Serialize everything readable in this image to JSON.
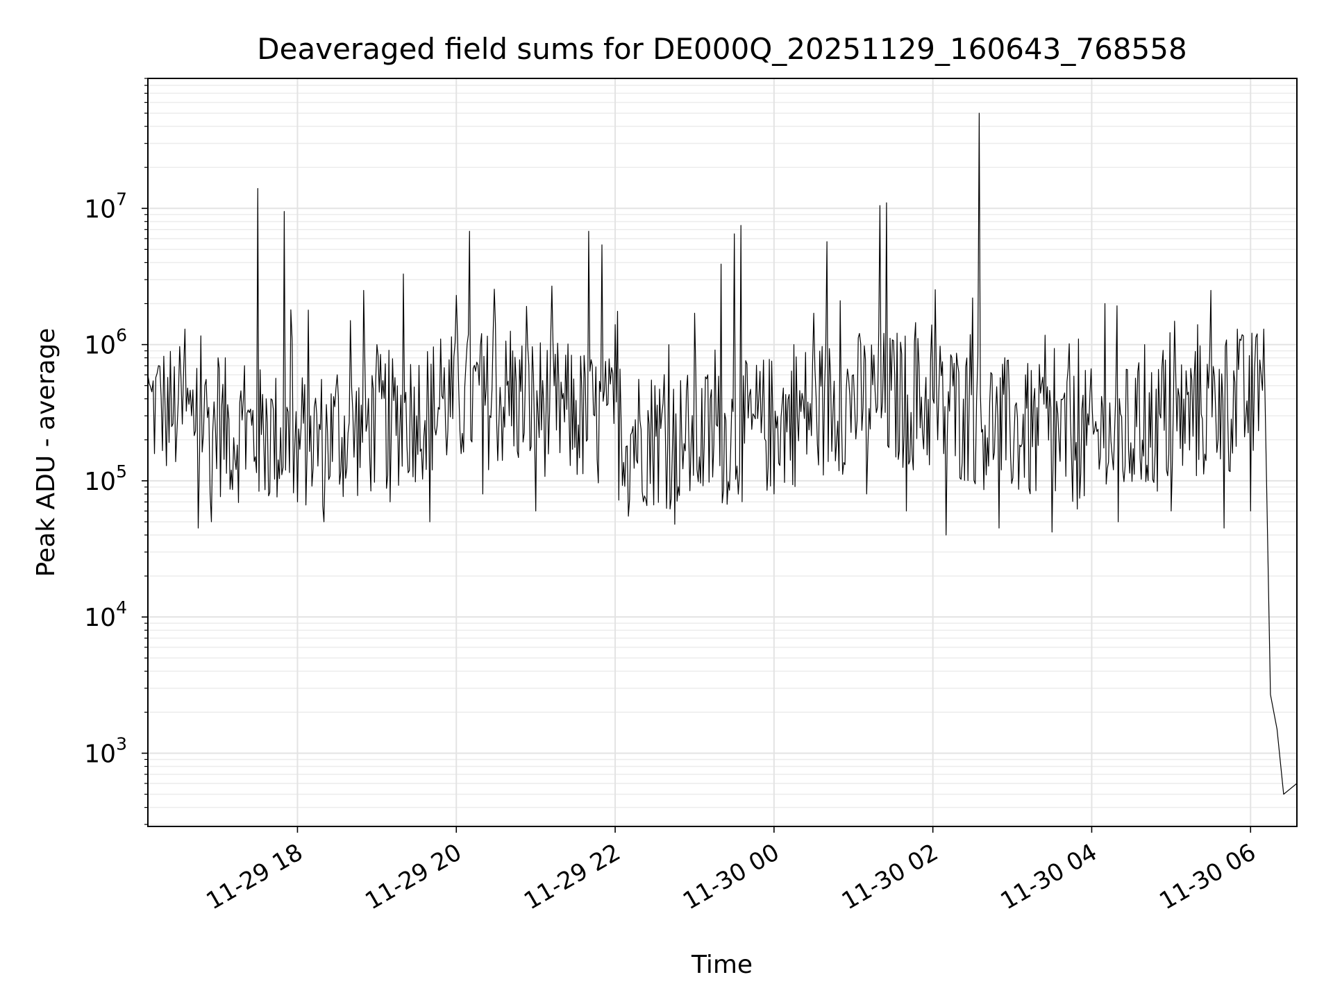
{
  "chart_data": {
    "type": "line",
    "title": "Deaveraged field sums for DE000Q_20251129_160643_768558",
    "xlabel": "Time",
    "ylabel": "Peak ADU - average",
    "yscale": "log",
    "grid": true,
    "line_color": "#000000",
    "xlim": [
      "2025-11-29 16:07",
      "2025-11-30 06:35"
    ],
    "ylim": [
      290,
      90000000
    ],
    "x_ticks": [
      {
        "value": "2025-11-29 18:00",
        "label": "11-29 18"
      },
      {
        "value": "2025-11-29 20:00",
        "label": "11-29 20"
      },
      {
        "value": "2025-11-29 22:00",
        "label": "11-29 22"
      },
      {
        "value": "2025-11-30 00:00",
        "label": "11-30 00"
      },
      {
        "value": "2025-11-30 02:00",
        "label": "11-30 02"
      },
      {
        "value": "2025-11-30 04:00",
        "label": "11-30 04"
      },
      {
        "value": "2025-11-30 06:00",
        "label": "11-30 06"
      }
    ],
    "y_ticks": [
      {
        "value": 1000,
        "base": "10",
        "exp": "3"
      },
      {
        "value": 10000,
        "base": "10",
        "exp": "4"
      },
      {
        "value": 100000,
        "base": "10",
        "exp": "5"
      },
      {
        "value": 1000000,
        "base": "10",
        "exp": "6"
      },
      {
        "value": 10000000,
        "base": "10",
        "exp": "7"
      }
    ],
    "series": [
      {
        "values": [
          [
            "2025-11-29 16:07",
            600000
          ],
          [
            "2025-11-29 16:10",
            450000
          ],
          [
            "2025-11-29 16:15",
            700000
          ],
          [
            "2025-11-29 16:20",
            350000
          ],
          [
            "2025-11-29 16:25",
            250000
          ],
          [
            "2025-11-29 16:30",
            400000
          ],
          [
            "2025-11-29 16:35",
            1300000
          ],
          [
            "2025-11-29 16:40",
            300000
          ],
          [
            "2025-11-29 16:45",
            45000
          ],
          [
            "2025-11-29 16:50",
            500000
          ],
          [
            "2025-11-29 16:55",
            50000
          ],
          [
            "2025-11-29 17:00",
            800000
          ],
          [
            "2025-11-29 17:10",
            120000
          ],
          [
            "2025-11-29 17:20",
            700000
          ],
          [
            "2025-11-29 17:30",
            14000000
          ],
          [
            "2025-11-29 17:40",
            400000
          ],
          [
            "2025-11-29 17:50",
            9500000
          ],
          [
            "2025-11-29 17:55",
            1800000
          ],
          [
            "2025-11-29 18:00",
            70000
          ],
          [
            "2025-11-29 18:10",
            300000
          ],
          [
            "2025-11-29 18:20",
            50000
          ],
          [
            "2025-11-29 18:30",
            600000
          ],
          [
            "2025-11-29 18:40",
            1500000
          ],
          [
            "2025-11-29 18:50",
            2500000
          ],
          [
            "2025-11-29 19:00",
            1000000
          ],
          [
            "2025-11-29 19:10",
            70000
          ],
          [
            "2025-11-29 19:20",
            3300000
          ],
          [
            "2025-11-29 19:30",
            300000
          ],
          [
            "2025-11-29 19:40",
            50000
          ],
          [
            "2025-11-29 19:50",
            400000
          ],
          [
            "2025-11-29 20:00",
            2300000
          ],
          [
            "2025-11-29 20:10",
            6800000
          ],
          [
            "2025-11-29 20:20",
            80000
          ],
          [
            "2025-11-29 20:40",
            300000
          ],
          [
            "2025-11-29 21:00",
            60000
          ],
          [
            "2025-11-29 21:20",
            400000
          ],
          [
            "2025-11-29 21:40",
            6800000
          ],
          [
            "2025-11-29 21:50",
            5400000
          ],
          [
            "2025-11-29 22:00",
            1400000
          ],
          [
            "2025-11-29 22:10",
            55000
          ],
          [
            "2025-11-29 22:30",
            500000
          ],
          [
            "2025-11-29 22:45",
            48000
          ],
          [
            "2025-11-29 23:00",
            1700000
          ],
          [
            "2025-11-29 23:10",
            600000
          ],
          [
            "2025-11-29 23:20",
            3900000
          ],
          [
            "2025-11-29 23:30",
            6500000
          ],
          [
            "2025-11-29 23:35",
            7500000
          ],
          [
            "2025-11-29 23:45",
            300000
          ],
          [
            "2025-11-30 00:00",
            80000
          ],
          [
            "2025-11-30 00:15",
            1000000
          ],
          [
            "2025-11-30 00:30",
            1700000
          ],
          [
            "2025-11-30 00:40",
            5700000
          ],
          [
            "2025-11-30 00:50",
            2100000
          ],
          [
            "2025-11-30 01:00",
            600000
          ],
          [
            "2025-11-30 01:10",
            80000
          ],
          [
            "2025-11-30 01:20",
            10500000
          ],
          [
            "2025-11-30 01:25",
            11000000
          ],
          [
            "2025-11-30 01:40",
            60000
          ],
          [
            "2025-11-30 02:00",
            400000
          ],
          [
            "2025-11-30 02:10",
            40000
          ],
          [
            "2025-11-30 02:30",
            2200000
          ],
          [
            "2025-11-30 02:35",
            50000000
          ],
          [
            "2025-11-30 02:50",
            45000
          ],
          [
            "2025-11-30 03:10",
            600000
          ],
          [
            "2025-11-30 03:30",
            42000
          ],
          [
            "2025-11-30 03:50",
            1100000
          ],
          [
            "2025-11-30 04:10",
            2000000
          ],
          [
            "2025-11-30 04:20",
            50000
          ],
          [
            "2025-11-30 04:40",
            1000000
          ],
          [
            "2025-11-30 05:00",
            60000
          ],
          [
            "2025-11-30 05:20",
            1400000
          ],
          [
            "2025-11-30 05:30",
            2500000
          ],
          [
            "2025-11-30 05:40",
            45000
          ],
          [
            "2025-11-30 05:50",
            1300000
          ],
          [
            "2025-11-30 06:00",
            60000
          ],
          [
            "2025-11-30 06:05",
            1200000
          ],
          [
            "2025-11-30 06:10",
            1300000
          ],
          [
            "2025-11-30 06:15",
            2700
          ],
          [
            "2025-11-30 06:20",
            1500
          ],
          [
            "2025-11-30 06:25",
            500
          ],
          [
            "2025-11-30 06:35",
            600
          ]
        ]
      }
    ]
  }
}
